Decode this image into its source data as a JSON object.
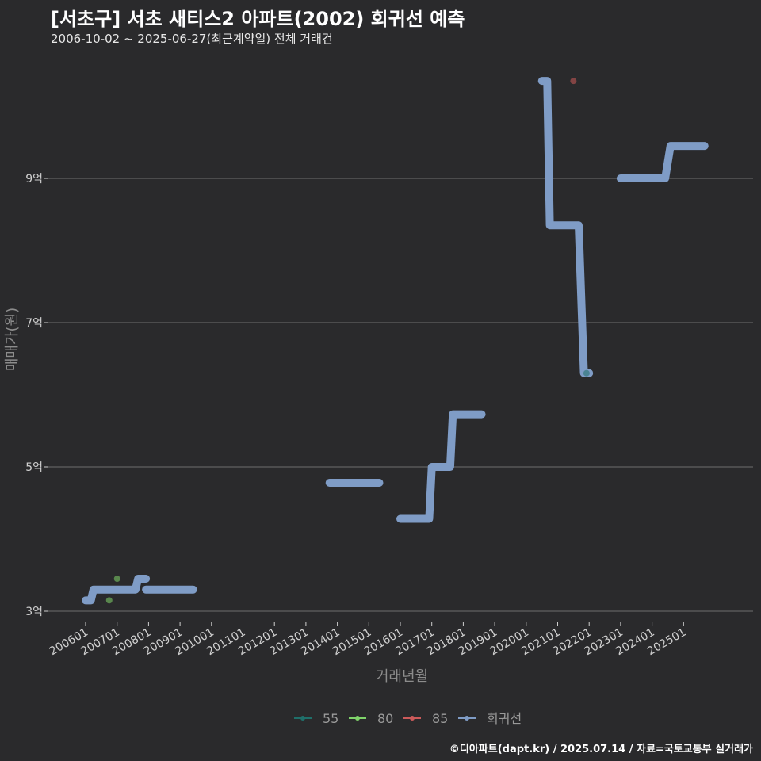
{
  "title": "[서초구] 서초 새티스2 아파트(2002) 회귀선 예측",
  "subtitle": "2006-10-02 ~ 2025-06-27(최근계약일) 전체 거래건",
  "credit": "©디아파트(dapt.kr) / 2025.07.14 / 자료=국토교통부 실거래가",
  "colors": {
    "background": "#2a2a2c",
    "grid": "#6e6e6e",
    "axis_text": "#d0d0d0",
    "axis_title": "#8c8c8c",
    "series_55": "#1f6f6a",
    "series_80": "#7fd36a",
    "series_85": "#cc5a5a",
    "regression": "#7f9cc6"
  },
  "chart_data": {
    "type": "scatter",
    "xlabel": "거래년월",
    "ylabel": "매매가(원)",
    "x_range": [
      "2005-06",
      "2026-12"
    ],
    "ylim": [
      2.85,
      10.65
    ],
    "y_unit": "억",
    "y_ticks": [
      3,
      5,
      7,
      9
    ],
    "y_tick_labels": [
      "3억",
      "5억",
      "7억",
      "9억"
    ],
    "x_ticks": [
      "200601",
      "200701",
      "200801",
      "200901",
      "201001",
      "201101",
      "201201",
      "201301",
      "201401",
      "201501",
      "201601",
      "201701",
      "201801",
      "201901",
      "202001",
      "202101",
      "202201",
      "202301",
      "202401",
      "202501"
    ],
    "grid": "horizontal",
    "legend_position": "bottom",
    "legend": [
      {
        "name": "55",
        "color_key": "series_55"
      },
      {
        "name": "80",
        "color_key": "series_80"
      },
      {
        "name": "85",
        "color_key": "series_85"
      },
      {
        "name": "회귀선",
        "color_key": "regression"
      }
    ],
    "series": [
      {
        "name": "55",
        "points": [
          {
            "date": "2021-12",
            "value": 6.3
          }
        ]
      },
      {
        "name": "80",
        "points": [
          {
            "date": "2006-10",
            "value": 3.15
          },
          {
            "date": "2007-01",
            "value": 3.45
          }
        ]
      },
      {
        "name": "85",
        "points": [
          {
            "date": "2021-07",
            "value": 10.35
          }
        ]
      }
    ],
    "regression": [
      [
        {
          "date": "2006-01",
          "value": 3.15
        },
        {
          "date": "2006-03",
          "value": 3.15
        },
        {
          "date": "2006-04",
          "value": 3.3
        },
        {
          "date": "2007-08",
          "value": 3.3
        },
        {
          "date": "2007-09",
          "value": 3.45
        },
        {
          "date": "2007-12",
          "value": 3.45
        }
      ],
      [
        {
          "date": "2007-12",
          "value": 3.3
        },
        {
          "date": "2009-06",
          "value": 3.3
        }
      ],
      [
        {
          "date": "2013-10",
          "value": 4.78
        },
        {
          "date": "2015-05",
          "value": 4.78
        }
      ],
      [
        {
          "date": "2016-01",
          "value": 4.28
        },
        {
          "date": "2016-12",
          "value": 4.28
        },
        {
          "date": "2017-01",
          "value": 5.0
        },
        {
          "date": "2017-08",
          "value": 5.0
        },
        {
          "date": "2017-09",
          "value": 5.73
        },
        {
          "date": "2018-08",
          "value": 5.73
        }
      ],
      [
        {
          "date": "2020-07",
          "value": 10.35
        },
        {
          "date": "2020-09",
          "value": 10.35
        },
        {
          "date": "2020-10",
          "value": 8.35
        },
        {
          "date": "2021-09",
          "value": 8.35
        },
        {
          "date": "2021-11",
          "value": 6.3
        },
        {
          "date": "2022-01",
          "value": 6.3
        }
      ],
      [
        {
          "date": "2023-01",
          "value": 9.0
        },
        {
          "date": "2024-06",
          "value": 9.0
        },
        {
          "date": "2024-08",
          "value": 9.45
        },
        {
          "date": "2025-09",
          "value": 9.45
        }
      ]
    ]
  }
}
